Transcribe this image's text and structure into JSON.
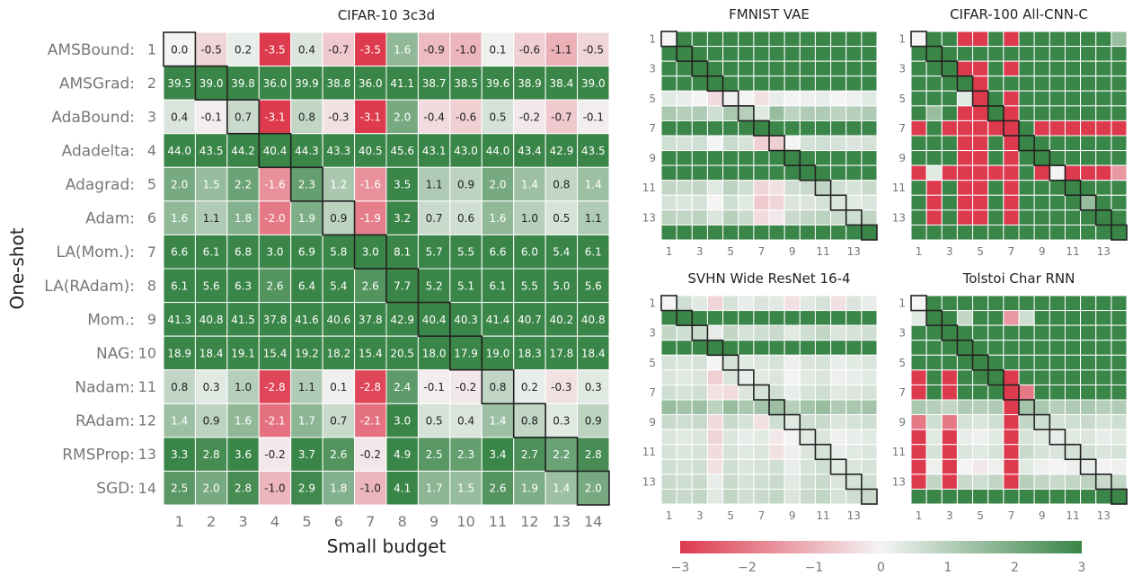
{
  "chart_data": [
    {
      "type": "heatmap",
      "title": "CIFAR-10 3c3d",
      "xlabel": "Small budget",
      "ylabel": "One-shot",
      "x_ticks": [
        "1",
        "2",
        "3",
        "4",
        "5",
        "6",
        "7",
        "8",
        "9",
        "10",
        "11",
        "12",
        "13",
        "14"
      ],
      "y_row_names": [
        "AMSBound:",
        "AMSGrad:",
        "AdaBound:",
        "Adadelta:",
        "Adagrad:",
        "Adam:",
        "LA(Mom.):",
        "LA(RAdam):",
        "Mom.:",
        "NAG:",
        "Nadam:",
        "RAdam:",
        "RMSProp:",
        "SGD:"
      ],
      "y_ticks": [
        "1",
        "2",
        "3",
        "4",
        "5",
        "6",
        "7",
        "8",
        "9",
        "10",
        "11",
        "12",
        "13",
        "14"
      ],
      "diagonal_outlined": true,
      "values": [
        [
          0.0,
          -0.5,
          0.2,
          -3.5,
          0.4,
          -0.7,
          -3.5,
          1.6,
          -0.9,
          -1.0,
          0.1,
          -0.6,
          -1.1,
          -0.5
        ],
        [
          39.5,
          39.0,
          39.8,
          36.0,
          39.9,
          38.8,
          36.0,
          41.1,
          38.7,
          38.5,
          39.6,
          38.9,
          38.4,
          39.0
        ],
        [
          0.4,
          -0.1,
          0.7,
          -3.1,
          0.8,
          -0.3,
          -3.1,
          2.0,
          -0.4,
          -0.6,
          0.5,
          -0.2,
          -0.7,
          -0.1
        ],
        [
          44.0,
          43.5,
          44.2,
          40.4,
          44.3,
          43.3,
          40.5,
          45.6,
          43.1,
          43.0,
          44.0,
          43.4,
          42.9,
          43.5
        ],
        [
          2.0,
          1.5,
          2.2,
          -1.6,
          2.3,
          1.2,
          -1.6,
          3.5,
          1.1,
          0.9,
          2.0,
          1.4,
          0.8,
          1.4
        ],
        [
          1.6,
          1.1,
          1.8,
          -2.0,
          1.9,
          0.9,
          -1.9,
          3.2,
          0.7,
          0.6,
          1.6,
          1.0,
          0.5,
          1.1
        ],
        [
          6.6,
          6.1,
          6.8,
          3.0,
          6.9,
          5.8,
          3.0,
          8.1,
          5.7,
          5.5,
          6.6,
          6.0,
          5.4,
          6.1
        ],
        [
          6.1,
          5.6,
          6.3,
          2.6,
          6.4,
          5.4,
          2.6,
          7.7,
          5.2,
          5.1,
          6.1,
          5.5,
          5.0,
          5.6
        ],
        [
          41.3,
          40.8,
          41.5,
          37.8,
          41.6,
          40.6,
          37.8,
          42.9,
          40.4,
          40.3,
          41.4,
          40.7,
          40.2,
          40.8
        ],
        [
          18.9,
          18.4,
          19.1,
          15.4,
          19.2,
          18.2,
          15.4,
          20.5,
          18.0,
          17.9,
          19.0,
          18.3,
          17.8,
          18.4
        ],
        [
          0.8,
          0.3,
          1.0,
          -2.8,
          1.1,
          0.1,
          -2.8,
          2.4,
          -0.1,
          -0.2,
          0.8,
          0.2,
          -0.3,
          0.3
        ],
        [
          1.4,
          0.9,
          1.6,
          -2.1,
          1.7,
          0.7,
          -2.1,
          3.0,
          0.5,
          0.4,
          1.4,
          0.8,
          0.3,
          0.9
        ],
        [
          3.3,
          2.8,
          3.6,
          -0.2,
          3.7,
          2.6,
          -0.2,
          4.9,
          2.5,
          2.3,
          3.4,
          2.7,
          2.2,
          2.8
        ],
        [
          2.5,
          2.0,
          2.8,
          -1.0,
          2.9,
          1.8,
          -1.0,
          4.1,
          1.7,
          1.5,
          2.6,
          1.9,
          1.4,
          2.0
        ]
      ]
    },
    {
      "type": "heatmap",
      "title": "FMNIST VAE",
      "x_ticks": [
        "1",
        "3",
        "5",
        "7",
        "9",
        "11",
        "13"
      ],
      "y_ticks": [
        "1",
        "3",
        "5",
        "7",
        "9",
        "11",
        "13"
      ],
      "diagonal_outlined": true,
      "values": [
        [
          0,
          3,
          3,
          3,
          3,
          3,
          3,
          3,
          3,
          3,
          3,
          3,
          3,
          3
        ],
        [
          3,
          3,
          3,
          3,
          3,
          3,
          3,
          3,
          3,
          3,
          3,
          3,
          3,
          3
        ],
        [
          3,
          3,
          3,
          3,
          3,
          3,
          3,
          3,
          3,
          3,
          3,
          3,
          3,
          3
        ],
        [
          3,
          3,
          3,
          3,
          3,
          3,
          3,
          3,
          3,
          3,
          3,
          3,
          3,
          3
        ],
        [
          0.3,
          0.2,
          0,
          -0.4,
          0.1,
          0,
          -0.3,
          0.2,
          0,
          0.1,
          0.2,
          0,
          0.1,
          0.3
        ],
        [
          1.2,
          1,
          1.1,
          0.6,
          1.2,
          1,
          0.3,
          1.5,
          0.9,
          1.1,
          1.1,
          0.9,
          1,
          1.1
        ],
        [
          3,
          3,
          3,
          3,
          3,
          3,
          3,
          3,
          3,
          3,
          3,
          3,
          3,
          3
        ],
        [
          0.6,
          0.5,
          0.6,
          0,
          0.7,
          0.5,
          -0.6,
          -0.6,
          0,
          0.5,
          0.6,
          0.5,
          0.4,
          0.5
        ],
        [
          3,
          3,
          3,
          3,
          3,
          3,
          3,
          3,
          3,
          3,
          3,
          3,
          3,
          3
        ],
        [
          3,
          3,
          3,
          3,
          3,
          3,
          3,
          3,
          3,
          3,
          3,
          3,
          3,
          3
        ],
        [
          0.8,
          0.7,
          0.8,
          0.3,
          0.9,
          0.6,
          -0.5,
          -0.3,
          0.6,
          0.7,
          0.8,
          0.6,
          0.5,
          0.7
        ],
        [
          0.5,
          0.4,
          0.5,
          0,
          0.6,
          0.3,
          -0.7,
          -0.5,
          0.4,
          0.4,
          0.5,
          0.4,
          0.3,
          0.4
        ],
        [
          0.9,
          0.8,
          0.9,
          0.4,
          1,
          0.7,
          -0.4,
          -0.2,
          0.7,
          0.8,
          0.9,
          0.7,
          0.6,
          0.8
        ],
        [
          3,
          3,
          3,
          3,
          3,
          3,
          3,
          3,
          3,
          3,
          3,
          3,
          3,
          3
        ]
      ]
    },
    {
      "type": "heatmap",
      "title": "CIFAR-100 All-CNN-C",
      "x_ticks": [
        "1",
        "3",
        "5",
        "7",
        "9",
        "11",
        "13"
      ],
      "y_ticks": [
        "1",
        "3",
        "5",
        "7",
        "9",
        "11",
        "13"
      ],
      "diagonal_outlined": true,
      "values": [
        [
          0,
          3,
          3,
          -3,
          -3,
          3,
          -3,
          3,
          3,
          3,
          3,
          3,
          3,
          1.5
        ],
        [
          3,
          3,
          3,
          3,
          3,
          3,
          3,
          3,
          3,
          3,
          3,
          3,
          3,
          3
        ],
        [
          3,
          3,
          3,
          -3,
          -3,
          3,
          -3,
          3,
          3,
          3,
          3,
          3,
          3,
          3
        ],
        [
          3,
          3,
          3,
          3,
          -3,
          3,
          3,
          3,
          3,
          3,
          3,
          3,
          3,
          3
        ],
        [
          3,
          3,
          3,
          0.3,
          -3,
          3,
          -3,
          3,
          3,
          3,
          3,
          3,
          3,
          3
        ],
        [
          3,
          1.5,
          3,
          -3,
          -3,
          3,
          -3,
          3,
          3,
          3,
          3,
          3,
          3,
          3
        ],
        [
          -3,
          3,
          -3,
          -3,
          -3,
          -3,
          -3,
          3,
          -3,
          -3,
          -3,
          -3,
          -3,
          -3
        ],
        [
          3,
          3,
          3,
          -3,
          -3,
          3,
          -3,
          3,
          3,
          3,
          3,
          3,
          3,
          3
        ],
        [
          3,
          3,
          3,
          -3,
          -3,
          3,
          -3,
          3,
          3,
          3,
          3,
          3,
          3,
          3
        ],
        [
          -3,
          0.3,
          -3,
          -3,
          -3,
          -3,
          -3,
          3,
          -3,
          0,
          -3,
          -3,
          -3,
          -1.5
        ],
        [
          3,
          -3,
          3,
          -3,
          -3,
          3,
          -3,
          3,
          3,
          3,
          3,
          3,
          3,
          3
        ],
        [
          3,
          -3,
          3,
          -3,
          -3,
          3,
          -3,
          3,
          3,
          3,
          3,
          1.5,
          3,
          3
        ],
        [
          3,
          -3,
          3,
          -3,
          -3,
          3,
          -3,
          3,
          3,
          3,
          3,
          3,
          3,
          3
        ],
        [
          3,
          3,
          3,
          3,
          3,
          3,
          3,
          3,
          3,
          3,
          3,
          3,
          3,
          3
        ]
      ]
    },
    {
      "type": "heatmap",
      "title": "SVHN Wide ResNet 16-4",
      "x_ticks": [
        "1",
        "3",
        "5",
        "7",
        "9",
        "11",
        "13"
      ],
      "y_ticks": [
        "1",
        "3",
        "5",
        "7",
        "9",
        "11",
        "13"
      ],
      "diagonal_outlined": true,
      "values": [
        [
          0,
          0.6,
          0.3,
          -0.5,
          0.5,
          0.2,
          0.4,
          0.3,
          -0.3,
          0.3,
          0.5,
          -0.3,
          0.4,
          0.2
        ],
        [
          3,
          3,
          3,
          3,
          3,
          3,
          3,
          3,
          3,
          3,
          3,
          3,
          3,
          3
        ],
        [
          0.8,
          0.6,
          0.7,
          0.2,
          0.8,
          0.5,
          0.6,
          0.7,
          0.3,
          0.6,
          0.8,
          0.4,
          0.5,
          0.6
        ],
        [
          3,
          3,
          3,
          3,
          3,
          3,
          3,
          3,
          3,
          3,
          3,
          3,
          3,
          3
        ],
        [
          0.5,
          0.4,
          0.5,
          0,
          0.5,
          0.3,
          0.4,
          0.5,
          0.1,
          0.4,
          0.5,
          0.2,
          0.3,
          0.4
        ],
        [
          0.4,
          0.3,
          0.4,
          -0.6,
          0.4,
          0.2,
          0.3,
          0.4,
          0,
          0.3,
          0.4,
          0.1,
          0.2,
          0.3
        ],
        [
          0.6,
          0.5,
          0.6,
          -0.3,
          -0.4,
          0.4,
          0.5,
          0.6,
          0.2,
          0.5,
          0.6,
          0.3,
          0.4,
          0.5
        ],
        [
          1.5,
          1.3,
          1.4,
          0.9,
          1.5,
          1.2,
          1.3,
          1.4,
          1,
          1.3,
          1.5,
          1.1,
          1.2,
          1.3
        ],
        [
          0.7,
          0.6,
          0.7,
          -0.4,
          0.7,
          0.5,
          -0.3,
          0.6,
          0.3,
          0.6,
          0.7,
          0.4,
          0.5,
          0.6
        ],
        [
          0.4,
          0.3,
          0.4,
          -0.5,
          0.4,
          0.2,
          0.3,
          -0.2,
          0,
          0.3,
          0.4,
          0.1,
          0.2,
          0.3
        ],
        [
          0.5,
          0.4,
          0.5,
          -0.4,
          0.5,
          0.3,
          0.4,
          -0.3,
          0.1,
          0.4,
          0.5,
          0.2,
          0.3,
          0.4
        ],
        [
          0.6,
          0.5,
          0.6,
          -0.3,
          0.6,
          0.4,
          0.5,
          0.6,
          0.2,
          0.5,
          0.6,
          0.3,
          0.4,
          0.5
        ],
        [
          0.7,
          0.6,
          0.7,
          0.2,
          0.7,
          0.5,
          0.6,
          0.7,
          0.3,
          0.6,
          0.7,
          0.4,
          0.5,
          0.6
        ],
        [
          0.8,
          0.7,
          0.8,
          0.3,
          0.8,
          0.6,
          0.7,
          0.8,
          0.4,
          0.7,
          0.8,
          0.5,
          0.6,
          0.7
        ]
      ]
    },
    {
      "type": "heatmap",
      "title": "Tolstoi Char RNN",
      "x_ticks": [
        "1",
        "3",
        "5",
        "7",
        "9",
        "11",
        "13"
      ],
      "y_ticks": [
        "1",
        "3",
        "5",
        "7",
        "9",
        "11",
        "13"
      ],
      "diagonal_outlined": true,
      "values": [
        [
          0,
          3,
          3,
          3,
          3,
          3,
          3,
          3,
          3,
          3,
          3,
          3,
          3,
          3
        ],
        [
          0.3,
          3,
          3,
          0.8,
          3,
          3,
          -1.5,
          0.6,
          3,
          3,
          3,
          3,
          3,
          3
        ],
        [
          3,
          3,
          3,
          3,
          3,
          3,
          3,
          3,
          3,
          3,
          3,
          3,
          3,
          3
        ],
        [
          3,
          3,
          3,
          3,
          3,
          3,
          3,
          3,
          3,
          3,
          3,
          3,
          3,
          3
        ],
        [
          3,
          3,
          3,
          3,
          3,
          3,
          3,
          3,
          3,
          3,
          3,
          3,
          3,
          3
        ],
        [
          -3,
          3,
          -3,
          3,
          3,
          3,
          -3,
          3,
          3,
          3,
          3,
          3,
          3,
          3
        ],
        [
          -3,
          3,
          -3,
          3,
          3,
          3,
          -3,
          -2,
          3,
          3,
          3,
          3,
          3,
          3
        ],
        [
          1.2,
          1,
          0.8,
          1.1,
          1,
          1.1,
          -3,
          1.3,
          1.2,
          1,
          1.1,
          1.2,
          1,
          1.1
        ],
        [
          -2,
          0.6,
          -2,
          0.5,
          0.4,
          0.6,
          -3,
          0.8,
          0.6,
          0.5,
          0.6,
          0.7,
          0.5,
          0.6
        ],
        [
          -3,
          0.3,
          -3,
          0.2,
          0.1,
          0.3,
          -3,
          0.5,
          0.3,
          0.2,
          0.3,
          0.4,
          0.2,
          0.3
        ],
        [
          -3,
          0.5,
          -3,
          0.4,
          0.3,
          0.5,
          -3,
          0.7,
          0.5,
          0.4,
          0.5,
          0.6,
          0.4,
          0.5
        ],
        [
          -3,
          0.1,
          -3,
          0,
          -0.2,
          0.1,
          -3,
          0.3,
          0.1,
          0,
          0.1,
          0.2,
          0,
          0.1
        ],
        [
          -3,
          0.8,
          -3,
          0.7,
          0.6,
          0.8,
          -3,
          1,
          0.8,
          0.7,
          0.8,
          0.9,
          0.7,
          0.8
        ],
        [
          3,
          3,
          3,
          3,
          3,
          3,
          3,
          3,
          3,
          3,
          3,
          3,
          3,
          3
        ]
      ]
    }
  ],
  "colorbar": {
    "ticks": [
      "−3",
      "−2",
      "−1",
      "0",
      "1",
      "2",
      "3"
    ],
    "range": [
      -3,
      3
    ],
    "colors": {
      "negative": "#de3a4e",
      "mid": "#f4f4f4",
      "positive": "#3a8548"
    }
  },
  "style": {
    "grid_color": "#ffffff",
    "diagonal_outline_color": "#222222",
    "tick_color": "#777777",
    "title_color": "#222222"
  }
}
